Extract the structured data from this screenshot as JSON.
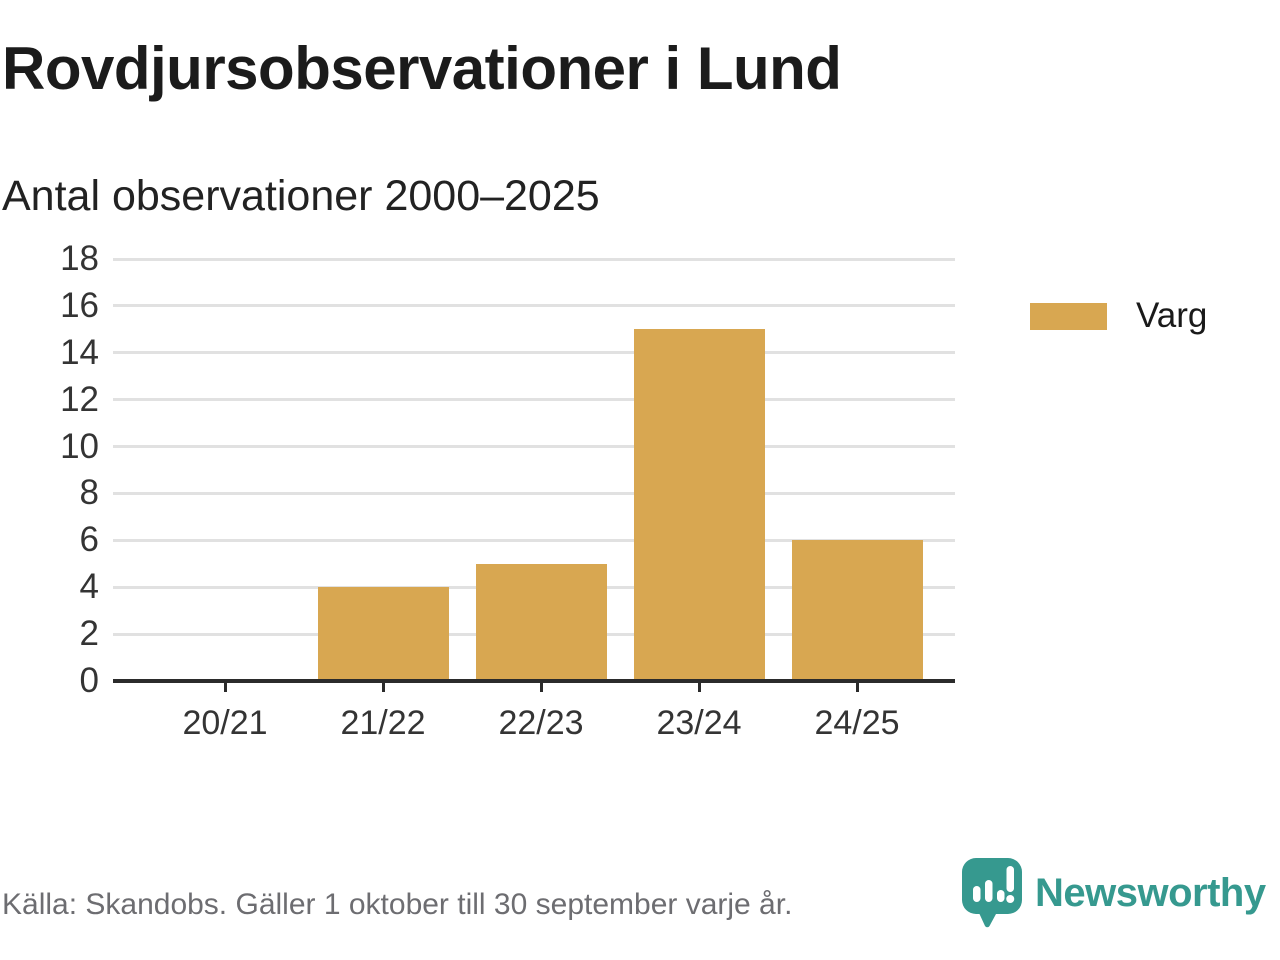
{
  "title": "Rovdjursobservationer i Lund",
  "subtitle": "Antal observationer 2000–2025",
  "legend": {
    "label": "Varg",
    "color": "#d8a751"
  },
  "footer": {
    "source": "Källa: Skandobs. Gäller 1 oktober till 30 september varje år.",
    "brand": "Newsworthy",
    "brand_color": "#36998f",
    "logo_icon": "newsworthy-speech-bubble-bar-chart-icon"
  },
  "chart_data": {
    "type": "bar",
    "title": "Rovdjursobservationer i Lund",
    "subtitle": "Antal observationer 2000–2025",
    "categories": [
      "20/21",
      "21/22",
      "22/23",
      "23/24",
      "24/25"
    ],
    "series": [
      {
        "name": "Varg",
        "color": "#d8a751",
        "values": [
          0,
          4,
          5,
          15,
          6
        ]
      }
    ],
    "xlabel": "",
    "ylabel": "",
    "ylim": [
      0,
      18
    ],
    "yticks": [
      0,
      2,
      4,
      6,
      8,
      10,
      12,
      14,
      16,
      18
    ],
    "grid": "horizontal",
    "legend_position": "right",
    "axis_color": "#2b2b2b",
    "gridline_color": "#e1e1e1"
  }
}
